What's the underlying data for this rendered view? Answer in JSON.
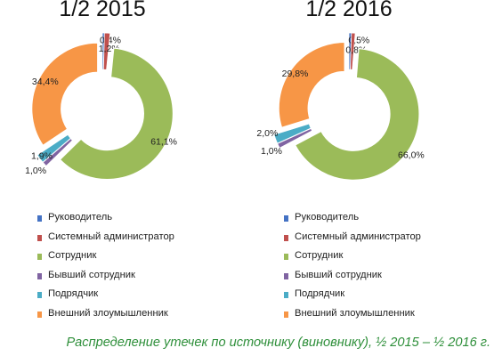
{
  "caption": "Распределение утечек по источнику (виновнику), ½ 2015 – ½ 2016 г.",
  "chart_data": [
    {
      "type": "pie",
      "variant": "donut",
      "title": "1/2 2015",
      "categories": [
        "Руководитель",
        "Системный администратор",
        "Сотрудник",
        "Бывший сотрудник",
        "Подрядчик",
        "Внешний злоумышленник"
      ],
      "values": [
        0.4,
        1.2,
        61.1,
        1.0,
        1.9,
        34.4
      ],
      "labels": [
        "0,4%",
        "1,2%",
        "61,1%",
        "1,0%",
        "1,9%",
        "34,4%"
      ],
      "colors": [
        "#4472c4",
        "#c0504d",
        "#9bbb59",
        "#8064a2",
        "#4bacc6",
        "#f79646"
      ],
      "legend": "bottom"
    },
    {
      "type": "pie",
      "variant": "donut",
      "title": "1/2 2016",
      "categories": [
        "Руководитель",
        "Системный администратор",
        "Сотрудник",
        "Бывший сотрудник",
        "Подрядчик",
        "Внешний злоумышленник"
      ],
      "values": [
        0.5,
        0.8,
        66.0,
        1.0,
        2.0,
        29.8
      ],
      "labels": [
        "0,5%",
        "0,8%",
        "66,0%",
        "1,0%",
        "2,0%",
        "29,8%"
      ],
      "colors": [
        "#4472c4",
        "#c0504d",
        "#9bbb59",
        "#8064a2",
        "#4bacc6",
        "#f79646"
      ],
      "legend": "bottom"
    }
  ]
}
